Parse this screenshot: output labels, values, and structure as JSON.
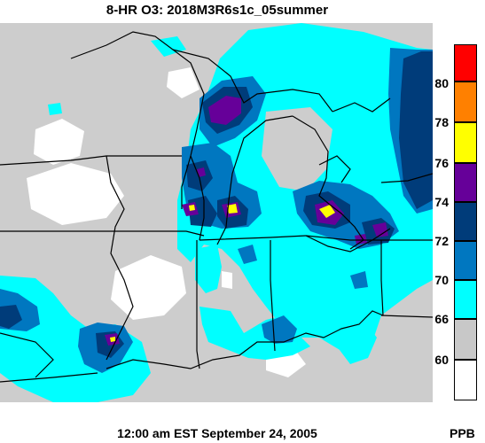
{
  "title": "8-HR O3: 2018M3R6s1c_05summer",
  "footer": "12:00 am EST September 24, 2005",
  "units_label": "PPB",
  "legend": {
    "ticks": [
      "80",
      "78",
      "76",
      "74",
      "72",
      "70",
      "66",
      "60"
    ],
    "colors": [
      "#ff0000",
      "#ff8000",
      "#ffff00",
      "#660099",
      "#003c7a",
      "#0077c0",
      "#00ffff",
      "#c8c8c8",
      "#ffffff"
    ]
  },
  "map_colors": {
    "background": "#cdcdcd",
    "below_60": "#ffffff",
    "c66_70": "#00ffff",
    "c70_72": "#0077c0",
    "c72_74": "#003c7a",
    "c74_76": "#660099",
    "c76_78": "#ffff00"
  }
}
